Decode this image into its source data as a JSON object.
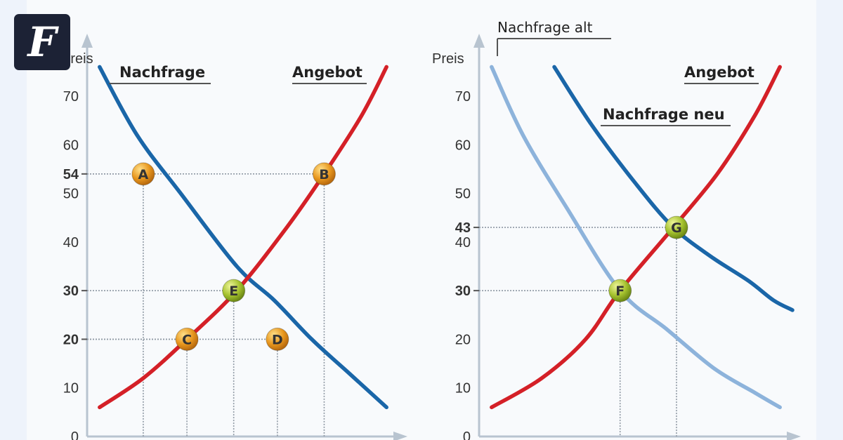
{
  "brand": {
    "logo_letter": "F",
    "logo_icon": "faz-fraktur-f-icon",
    "logo_bg": "#1c2235"
  },
  "colors": {
    "background": "#eef3fb",
    "panel": "#f8fafc",
    "demand": "#1a66a8",
    "demand_old": "#8db3db",
    "supply": "#d42027",
    "point_orange": "#e8971e",
    "point_green": "#a5c22e",
    "axis": "#b8c4d0",
    "guide": "#8e98a3"
  },
  "chart_data": [
    {
      "type": "line",
      "ylabel": "Preis",
      "xlabel": "",
      "ylim": [
        0,
        78
      ],
      "xlim": [
        0,
        100
      ],
      "yticks": [
        "0",
        "10",
        "20",
        "30",
        "40",
        "50",
        "60",
        "70"
      ],
      "highlight_ticks": [
        "20",
        "30",
        "54"
      ],
      "grid": false,
      "series": [
        {
          "name": "Nachfrage",
          "color": "#1a66a8",
          "x": [
            4,
            16,
            30,
            48,
            60,
            72,
            84,
            96
          ],
          "y": [
            76,
            62,
            50,
            35,
            28,
            20,
            13,
            6
          ]
        },
        {
          "name": "Angebot",
          "color": "#d42027",
          "x": [
            4,
            18,
            32,
            48,
            64,
            76,
            88,
            96
          ],
          "y": [
            6,
            12,
            20,
            30,
            43,
            54,
            66,
            76
          ]
        }
      ],
      "points": [
        {
          "label": "A",
          "x": 18,
          "y": 54,
          "style": "orange"
        },
        {
          "label": "B",
          "x": 76,
          "y": 54,
          "style": "orange"
        },
        {
          "label": "C",
          "x": 32,
          "y": 20,
          "style": "orange"
        },
        {
          "label": "D",
          "x": 61,
          "y": 20,
          "style": "orange"
        },
        {
          "label": "E",
          "x": 47,
          "y": 30,
          "style": "green"
        }
      ]
    },
    {
      "type": "line",
      "ylabel": "Preis",
      "xlabel": "",
      "ylim": [
        0,
        78
      ],
      "xlim": [
        0,
        100
      ],
      "yticks": [
        "0",
        "10",
        "20",
        "30",
        "40",
        "50",
        "60",
        "70"
      ],
      "highlight_ticks": [
        "30",
        "43"
      ],
      "grid": false,
      "series": [
        {
          "name": "Nachfrage alt",
          "color": "#8db3db",
          "x": [
            4,
            14,
            28,
            45,
            60,
            75,
            88,
            96
          ],
          "y": [
            76,
            62,
            47,
            30,
            22,
            14,
            9,
            6
          ]
        },
        {
          "name": "Nachfrage neu",
          "color": "#1a66a8",
          "x": [
            24,
            36,
            50,
            62,
            74,
            86,
            94,
            100
          ],
          "y": [
            76,
            64,
            52,
            43,
            37,
            32,
            28,
            26
          ]
        },
        {
          "name": "Angebot",
          "color": "#d42027",
          "x": [
            4,
            20,
            34,
            45,
            62,
            76,
            88,
            96
          ],
          "y": [
            6,
            12,
            20,
            30,
            43,
            54,
            66,
            76
          ]
        }
      ],
      "points": [
        {
          "label": "F",
          "x": 45,
          "y": 30,
          "style": "green"
        },
        {
          "label": "G",
          "x": 63,
          "y": 43,
          "style": "green"
        }
      ]
    }
  ]
}
